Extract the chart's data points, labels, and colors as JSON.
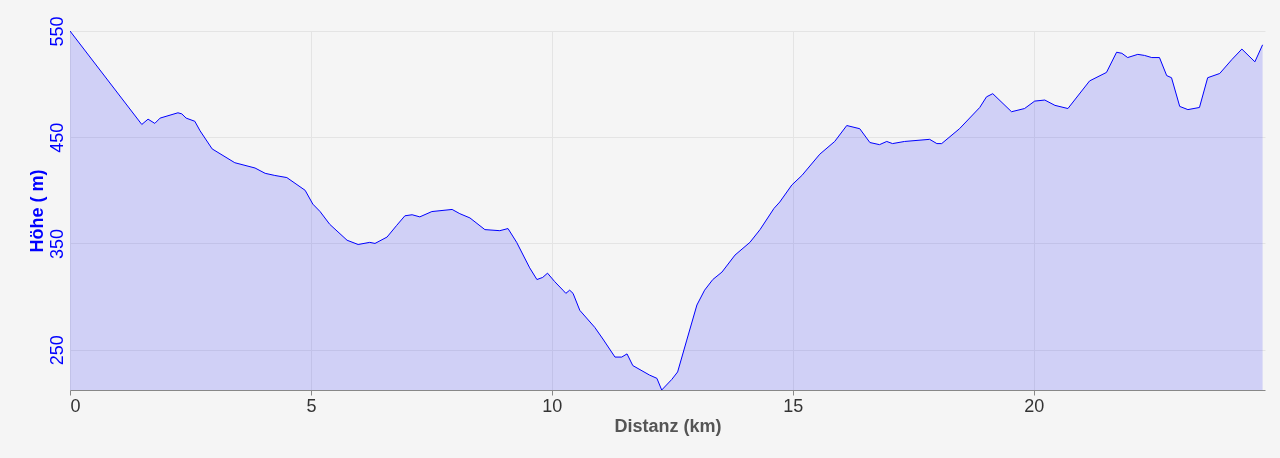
{
  "chart_data": {
    "type": "area",
    "xlabel": "Distanz (km)",
    "ylabel": "Höhe ( m)",
    "xlim": [
      0,
      24.8
    ],
    "ylim": [
      212,
      550
    ],
    "xticks": [
      0,
      5,
      10,
      15,
      20
    ],
    "yticks": [
      250,
      350,
      450,
      550
    ],
    "grid": true,
    "series": [
      {
        "color": "#0000ff",
        "x": [
          0,
          1.49,
          1.62,
          1.76,
          1.87,
          2.24,
          2.32,
          2.41,
          2.59,
          2.7,
          2.95,
          3.42,
          3.84,
          4.05,
          4.25,
          4.5,
          4.69,
          4.88,
          5.04,
          5.19,
          5.39,
          5.75,
          5.98,
          6.22,
          6.33,
          6.58,
          6.78,
          6.95,
          7.1,
          7.26,
          7.51,
          7.93,
          8.09,
          8.3,
          8.61,
          8.92,
          9.09,
          9.27,
          9.54,
          9.69,
          9.81,
          9.91,
          10.06,
          10.23,
          10.29,
          10.37,
          10.44,
          10.58,
          10.89,
          11.06,
          11.31,
          11.45,
          11.56,
          11.68,
          12.03,
          12.18,
          12.28,
          12.49,
          12.61,
          12.8,
          13.01,
          13.17,
          13.34,
          13.53,
          13.8,
          14.11,
          14.32,
          14.61,
          14.73,
          14.98,
          15.19,
          15.56,
          15.87,
          16.12,
          16.39,
          16.6,
          16.8,
          16.95,
          17.07,
          17.32,
          17.84,
          17.99,
          18.09,
          18.46,
          18.88,
          19.02,
          19.15,
          19.54,
          19.81,
          20.02,
          20.23,
          20.44,
          20.71,
          21.16,
          21.51,
          21.72,
          21.83,
          21.95,
          22.16,
          22.3,
          22.45,
          22.61,
          22.76,
          22.86,
          23.03,
          23.2,
          23.44,
          23.61,
          23.86,
          24.11,
          24.32,
          24.59,
          24.75
        ],
        "values": [
          550,
          462,
          467,
          463,
          468,
          473,
          472,
          468,
          465,
          456,
          439,
          426,
          421,
          416,
          414,
          412,
          406,
          400,
          387,
          380,
          368,
          353,
          349,
          351,
          350,
          356,
          367,
          376,
          377,
          375,
          380,
          382,
          378,
          374,
          363,
          362,
          364,
          351,
          327,
          316,
          318,
          322,
          314,
          306,
          303,
          306,
          303,
          287,
          271,
          260,
          243,
          243,
          246,
          235,
          226,
          223,
          212,
          222,
          229,
          259,
          292,
          306,
          316,
          323,
          339,
          351,
          363,
          383,
          389,
          405,
          414,
          434,
          446,
          461,
          458,
          445,
          443,
          446,
          444,
          446,
          448,
          444,
          444,
          458,
          478,
          488,
          491,
          474,
          477,
          484,
          485,
          480,
          477,
          503,
          511,
          530,
          529,
          525,
          528,
          527,
          525,
          525,
          508,
          506,
          479,
          476,
          478,
          506,
          510,
          523,
          533,
          521,
          537
        ]
      }
    ]
  }
}
